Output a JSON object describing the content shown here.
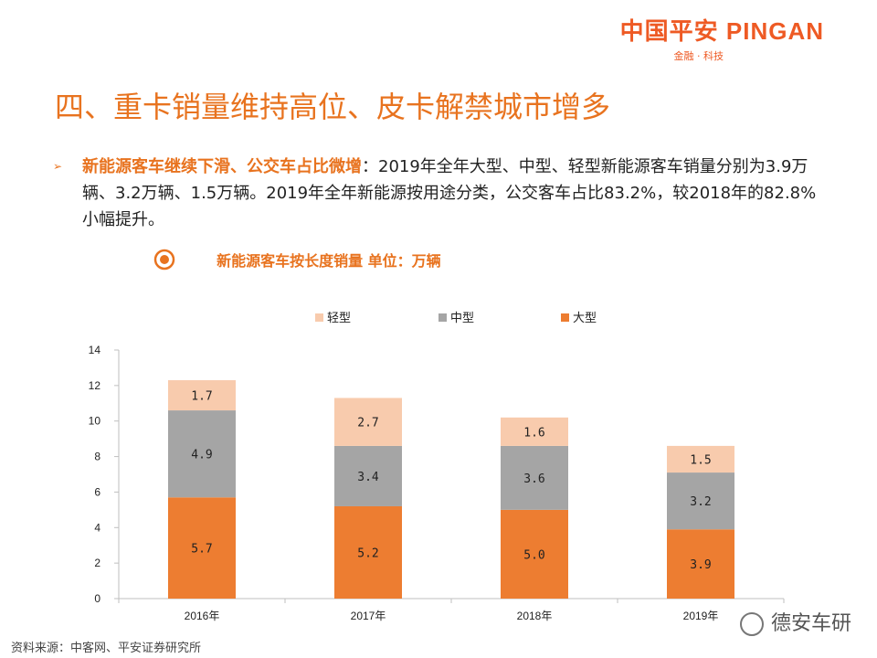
{
  "logo": {
    "brand": "中国平安 PINGAN",
    "tagline": "金融 · 科技"
  },
  "title": "四、重卡销量维持高位、皮卡解禁城市增多",
  "bullet": {
    "lead": "新能源客车继续下滑、公交车占比微增",
    "body": "：2019年全年大型、中型、轻型新能源客车销量分别为3.9万辆、3.2万辆、1.5万辆。2019年全年新能源按用途分类，公交客车占比83.2%，较2018年的82.8%小幅提升。"
  },
  "chart_subtitle": "新能源客车按长度销量 单位：万辆",
  "source": "资料来源：中客网、平安证券研究所",
  "watermark": "德安车研",
  "colors": {
    "accent": "#e8731f",
    "large": "#ed7d31",
    "medium": "#a5a5a5",
    "light": "#f8cbad"
  },
  "chart_data": {
    "type": "bar",
    "stacked": true,
    "title": "新能源客车按长度销量 单位：万辆",
    "categories": [
      "2016年",
      "2017年",
      "2018年",
      "2019年"
    ],
    "series": [
      {
        "name": "大型",
        "values": [
          5.7,
          5.2,
          5.0,
          3.9
        ],
        "labels": [
          "5.7",
          "5.2",
          "5.0",
          "3.9"
        ],
        "color": "#ed7d31"
      },
      {
        "name": "中型",
        "values": [
          4.9,
          3.4,
          3.6,
          3.2
        ],
        "labels": [
          "4.9",
          "3.4",
          "3.6",
          "3.2"
        ],
        "color": "#a5a5a5"
      },
      {
        "name": "轻型",
        "values": [
          1.7,
          2.7,
          1.6,
          1.5
        ],
        "labels": [
          "1.7",
          "2.7",
          "1.6",
          "1.5"
        ],
        "color": "#f8cbad"
      }
    ],
    "legend_order": [
      "轻型",
      "中型",
      "大型"
    ],
    "legend_position": "top",
    "ylim": [
      0,
      14
    ],
    "yticks": [
      0,
      2,
      4,
      6,
      8,
      10,
      12,
      14
    ],
    "grid": false
  }
}
